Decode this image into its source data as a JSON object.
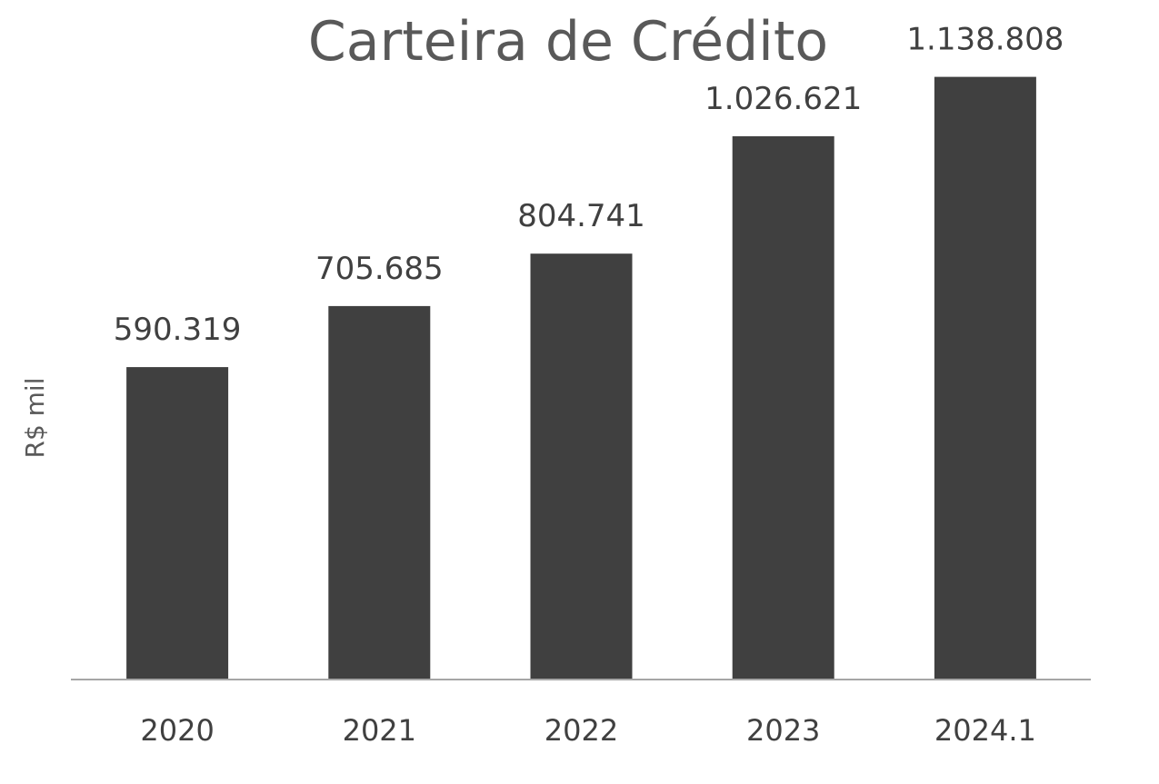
{
  "chart_data": {
    "type": "bar",
    "title": "Carteira de Crédito",
    "xlabel": "",
    "ylabel": "R$ mil",
    "categories": [
      "2020",
      "2021",
      "2022",
      "2023",
      "2024.1"
    ],
    "values": [
      590319,
      705685,
      804741,
      1026621,
      1138808
    ],
    "data_labels": [
      "590.319",
      "705.685",
      "804.741",
      "1.026.621",
      "1.138.808"
    ],
    "ylim": [
      0,
      1200000
    ],
    "grid": false,
    "legend": "none",
    "colors": {
      "bar": "#404040",
      "title": "#595959",
      "axis": "#a6a6a6",
      "text": "#404040"
    }
  }
}
